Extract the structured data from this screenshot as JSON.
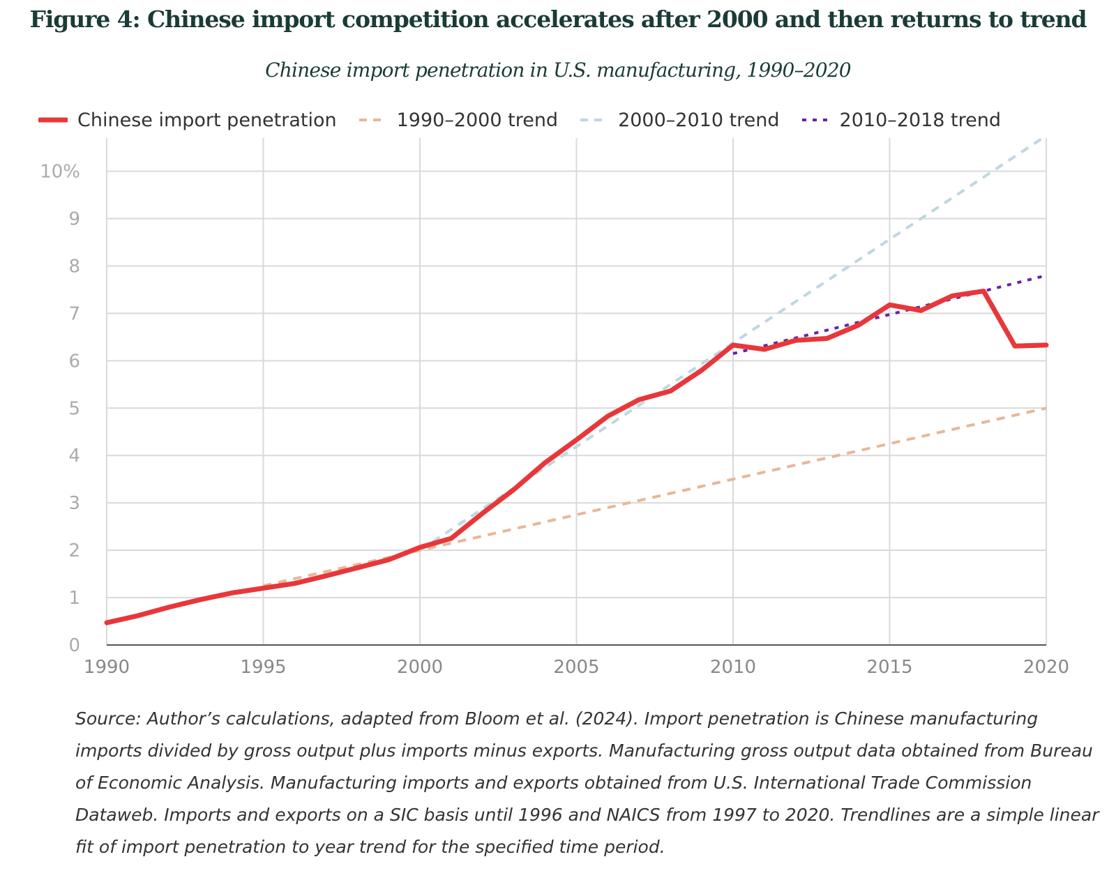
{
  "title": "Figure 4: Chinese import competition accelerates after 2000 and then returns to trend",
  "subtitle": "Chinese import penetration in U.S. manufacturing, 1990–2020",
  "source": "Source: Author’s calculations, adapted from Bloom et al. (2024). Import penetration is Chinese manufacturing imports divided by gross output plus imports minus exports. Manufacturing gross output data obtained from Bureau of Economic Analysis. Manufacturing imports and exports obtained from U.S. International Trade Commission Dataweb. Imports and exports on a SIC basis until 1996 and NAICS from 1997 to 2020. Trendlines are a simple linear fit of import penetration to year trend for the specified time period.",
  "chart_data": {
    "type": "line",
    "title": "Figure 4: Chinese import competition accelerates after 2000 and then returns to trend",
    "subtitle": "Chinese import penetration in U.S. manufacturing, 1990–2020",
    "xlabel": "",
    "ylabel": "",
    "xlim": [
      1990,
      2020
    ],
    "ylim": [
      0,
      10.7
    ],
    "x_ticks": [
      "1990",
      "1995",
      "2000",
      "2005",
      "2010",
      "2015",
      "2020"
    ],
    "y_ticks": [
      "0",
      "1",
      "2",
      "3",
      "4",
      "5",
      "6",
      "7",
      "8",
      "9",
      "10%"
    ],
    "y_tick_values": [
      0,
      1,
      2,
      3,
      4,
      5,
      6,
      7,
      8,
      9,
      10
    ],
    "grid": true,
    "legend_position": "top",
    "series": [
      {
        "name": "Chinese import penetration",
        "style": "solid",
        "color": "#e8373a",
        "x": [
          1990,
          1991,
          1992,
          1993,
          1994,
          1995,
          1996,
          1997,
          1998,
          1999,
          2000,
          2001,
          2002,
          2003,
          2004,
          2005,
          2006,
          2007,
          2008,
          2009,
          2010,
          2011,
          2012,
          2013,
          2014,
          2015,
          2016,
          2017,
          2018,
          2019,
          2020
        ],
        "y": [
          0.47,
          0.62,
          0.8,
          0.96,
          1.1,
          1.2,
          1.3,
          1.46,
          1.63,
          1.8,
          2.06,
          2.25,
          2.78,
          3.28,
          3.85,
          4.33,
          4.83,
          5.18,
          5.36,
          5.8,
          6.33,
          6.24,
          6.43,
          6.47,
          6.75,
          7.18,
          7.06,
          7.37,
          7.47,
          6.31,
          6.33
        ]
      },
      {
        "name": "1990–2000 trend",
        "style": "dashed",
        "color": "#e8b698",
        "x": [
          1995,
          2020
        ],
        "y": [
          1.25,
          5.0
        ]
      },
      {
        "name": "2000–2010 trend",
        "style": "dashed",
        "color": "#bfd7df",
        "x": [
          2000,
          2020
        ],
        "y": [
          2.0,
          10.75
        ]
      },
      {
        "name": "2010–2018 trend",
        "style": "dotted",
        "color": "#6a1fa8",
        "x": [
          2010,
          2020
        ],
        "y": [
          6.15,
          7.8
        ]
      }
    ]
  }
}
